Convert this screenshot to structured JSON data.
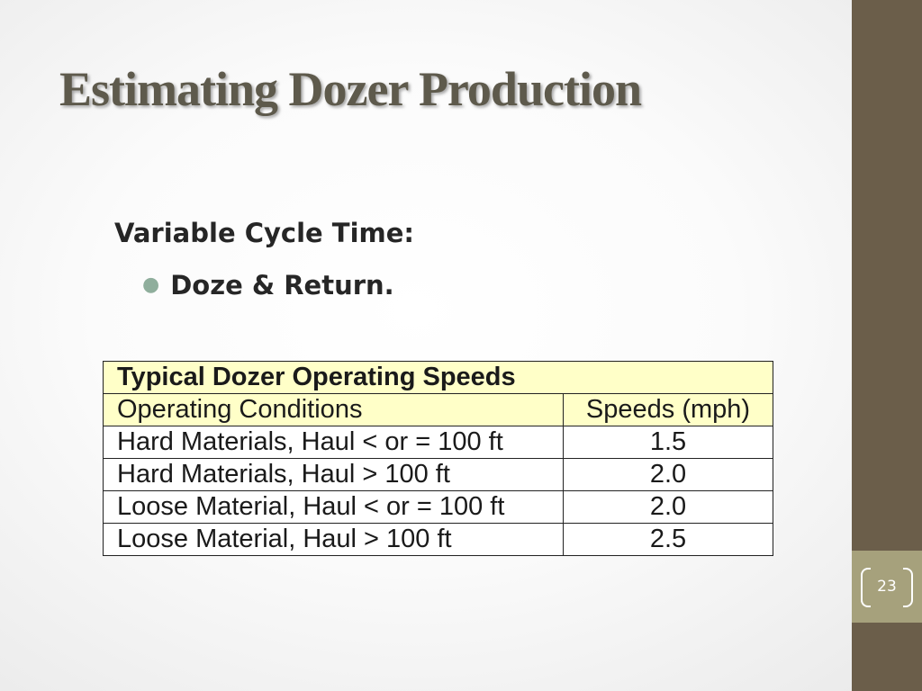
{
  "slide": {
    "title": "Estimating Dozer Production",
    "subheading": "Variable Cycle Time:",
    "bullets": [
      "Doze & Return."
    ],
    "page_number": "23"
  },
  "table": {
    "title": "Typical Dozer Operating Speeds",
    "headers": [
      "Operating Conditions",
      "Speeds (mph)"
    ],
    "rows": [
      [
        "Hard Materials, Haul < or = 100 ft",
        "1.5"
      ],
      [
        "Hard Materials, Haul > 100 ft",
        "2.0"
      ],
      [
        "Loose Material, Haul < or = 100 ft",
        "2.0"
      ],
      [
        "Loose Material, Haul > 100 ft",
        "2.5"
      ]
    ]
  },
  "colors": {
    "sidebar": "#6b5e4a",
    "page_box": "#a6a17c",
    "title_text": "#5e5a4c",
    "table_header_fill": "#ffffc8",
    "bullet_dot": "#8fae9c"
  },
  "icons": {
    "bullet": "bullet-dot-icon",
    "page_number_frame": "bracket-frame-icon"
  }
}
